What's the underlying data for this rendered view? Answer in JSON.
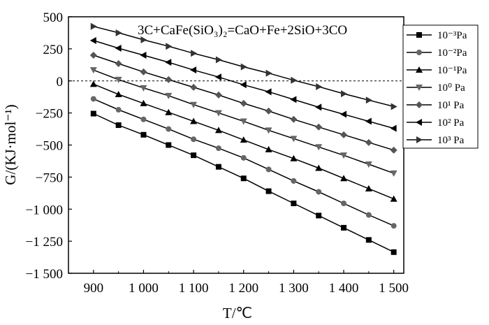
{
  "chart_data": {
    "type": "line",
    "title": "",
    "annotation": "3C+CaFe(SiO₃)₂=CaO+Fe+2SiO+3CO",
    "xlabel": "T/℃",
    "ylabel": "G/(KJ·mol⁻¹)",
    "x": [
      900,
      950,
      1000,
      1050,
      1100,
      1150,
      1200,
      1250,
      1300,
      1350,
      1400,
      1450,
      1500
    ],
    "xlim": [
      850,
      1520
    ],
    "ylim": [
      -1500,
      500
    ],
    "x_ticks": [
      900,
      1000,
      1100,
      1200,
      1300,
      1400,
      1500
    ],
    "x_tick_labels": [
      "900",
      "1 000",
      "1 100",
      "1 200",
      "1 300",
      "1 400",
      "1 500"
    ],
    "y_ticks": [
      500,
      250,
      0,
      -250,
      -500,
      -750,
      -1000,
      -1250,
      -1500
    ],
    "y_tick_labels": [
      "500",
      "250",
      "0",
      "−250",
      "−500",
      "−750",
      "−1 000",
      "−1 250",
      "−1 500"
    ],
    "reference_line": {
      "y": 0,
      "style": "dashed"
    },
    "grid": false,
    "legend_position": "top-right",
    "series": [
      {
        "name": "10⁻³Pa",
        "marker": "square",
        "values": [
          -255,
          -345,
          -420,
          -500,
          -580,
          -670,
          -760,
          -860,
          -955,
          -1050,
          -1145,
          -1240,
          -1335
        ]
      },
      {
        "name": "10⁻²Pa",
        "marker": "circle",
        "values": [
          -140,
          -225,
          -300,
          -375,
          -455,
          -525,
          -600,
          -690,
          -780,
          -865,
          -955,
          -1045,
          -1130
        ]
      },
      {
        "name": "10⁻¹Pa",
        "marker": "triangle-up",
        "values": [
          -25,
          -105,
          -175,
          -245,
          -315,
          -385,
          -460,
          -535,
          -605,
          -680,
          -760,
          -840,
          -920
        ]
      },
      {
        "name": "10⁰ Pa",
        "marker": "triangle-down",
        "values": [
          85,
          10,
          -55,
          -115,
          -185,
          -250,
          -315,
          -385,
          -450,
          -515,
          -580,
          -650,
          -720
        ]
      },
      {
        "name": "10¹ Pa",
        "marker": "diamond",
        "values": [
          200,
          135,
          70,
          10,
          -50,
          -110,
          -175,
          -235,
          -300,
          -360,
          -420,
          -480,
          -540
        ]
      },
      {
        "name": "10² Pa",
        "marker": "triangle-left",
        "values": [
          315,
          255,
          200,
          145,
          85,
          30,
          -30,
          -85,
          -145,
          -205,
          -260,
          -315,
          -370
        ]
      },
      {
        "name": "10³ Pa",
        "marker": "triangle-right",
        "values": [
          425,
          375,
          320,
          270,
          215,
          165,
          110,
          60,
          5,
          -45,
          -100,
          -150,
          -200
        ]
      }
    ]
  }
}
